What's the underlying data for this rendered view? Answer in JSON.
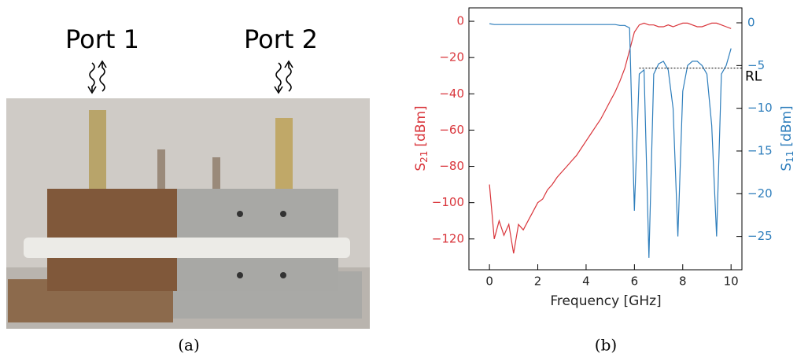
{
  "photo": {
    "labels": [
      "Port 1",
      "Port 2"
    ],
    "caption": "(a)"
  },
  "chart_data": {
    "type": "line",
    "caption": "(b)",
    "xlabel": "Frequency [GHz]",
    "ylabel": {
      "symbol": "S",
      "sub": "21",
      "unit": "[dBm]"
    },
    "y2label": {
      "symbol": "S",
      "sub": "11",
      "unit": "[dBm]"
    },
    "x": [
      0,
      0.2,
      0.4,
      0.6,
      0.8,
      1.0,
      1.2,
      1.4,
      1.6,
      1.8,
      2.0,
      2.2,
      2.4,
      2.6,
      2.8,
      3.0,
      3.2,
      3.4,
      3.6,
      3.8,
      4.0,
      4.2,
      4.4,
      4.6,
      4.8,
      5.0,
      5.2,
      5.4,
      5.6,
      5.8,
      6.0,
      6.2,
      6.4,
      6.6,
      6.8,
      7.0,
      7.2,
      7.4,
      7.6,
      7.8,
      8.0,
      8.2,
      8.4,
      8.6,
      8.8,
      9.0,
      9.2,
      9.4,
      9.6,
      9.8,
      10.0
    ],
    "series": [
      {
        "name": "S21",
        "color": "#d9353b",
        "axis": "y",
        "values": [
          -90,
          -120,
          -110,
          -118,
          -112,
          -128,
          -112,
          -115,
          -110,
          -105,
          -100,
          -98,
          -93,
          -90,
          -86,
          -83,
          -80,
          -77,
          -74,
          -70,
          -66,
          -62,
          -58,
          -54,
          -49,
          -44,
          -39,
          -33,
          -26,
          -16,
          -6,
          -2,
          -1,
          -2,
          -2,
          -3,
          -3,
          -2,
          -3,
          -2,
          -1,
          -1,
          -2,
          -3,
          -3,
          -2,
          -1,
          -1,
          -2,
          -3,
          -4
        ]
      },
      {
        "name": "S11",
        "color": "#2e7ebc",
        "axis": "y2",
        "values": [
          -0.1,
          -0.2,
          -0.2,
          -0.2,
          -0.2,
          -0.2,
          -0.2,
          -0.2,
          -0.2,
          -0.2,
          -0.2,
          -0.2,
          -0.2,
          -0.2,
          -0.2,
          -0.2,
          -0.2,
          -0.2,
          -0.2,
          -0.2,
          -0.2,
          -0.2,
          -0.2,
          -0.2,
          -0.2,
          -0.2,
          -0.2,
          -0.3,
          -0.3,
          -0.6,
          -22,
          -6,
          -5.5,
          -27.5,
          -6,
          -4.8,
          -4.5,
          -5.5,
          -10,
          -25,
          -8,
          -5,
          -4.5,
          -4.5,
          -5,
          -6,
          -12,
          -25,
          -6,
          -5,
          -3
        ]
      }
    ],
    "rl_line": {
      "label": "RL",
      "y": -5.3,
      "x": 6.2
    },
    "xlim": [
      -0.85,
      10.45
    ],
    "xticks": [
      0,
      2,
      4,
      6,
      8,
      10
    ],
    "ylim": [
      -137,
      7.4
    ],
    "yticks": [
      {
        "value": 0,
        "label": "0"
      },
      {
        "value": -20,
        "label": "−20"
      },
      {
        "value": -40,
        "label": "−40"
      },
      {
        "value": -60,
        "label": "−60"
      },
      {
        "value": -80,
        "label": "−80"
      },
      {
        "value": -100,
        "label": "−100"
      },
      {
        "value": -120,
        "label": "−120"
      }
    ],
    "y2lim": [
      -28.9,
      1.75
    ],
    "y2ticks": [
      {
        "value": 0,
        "label": "0"
      },
      {
        "value": -5,
        "label": "−5"
      },
      {
        "value": -10,
        "label": "−10"
      },
      {
        "value": -15,
        "label": "−15"
      },
      {
        "value": -20,
        "label": "−20"
      },
      {
        "value": -25,
        "label": "−25"
      }
    ]
  }
}
